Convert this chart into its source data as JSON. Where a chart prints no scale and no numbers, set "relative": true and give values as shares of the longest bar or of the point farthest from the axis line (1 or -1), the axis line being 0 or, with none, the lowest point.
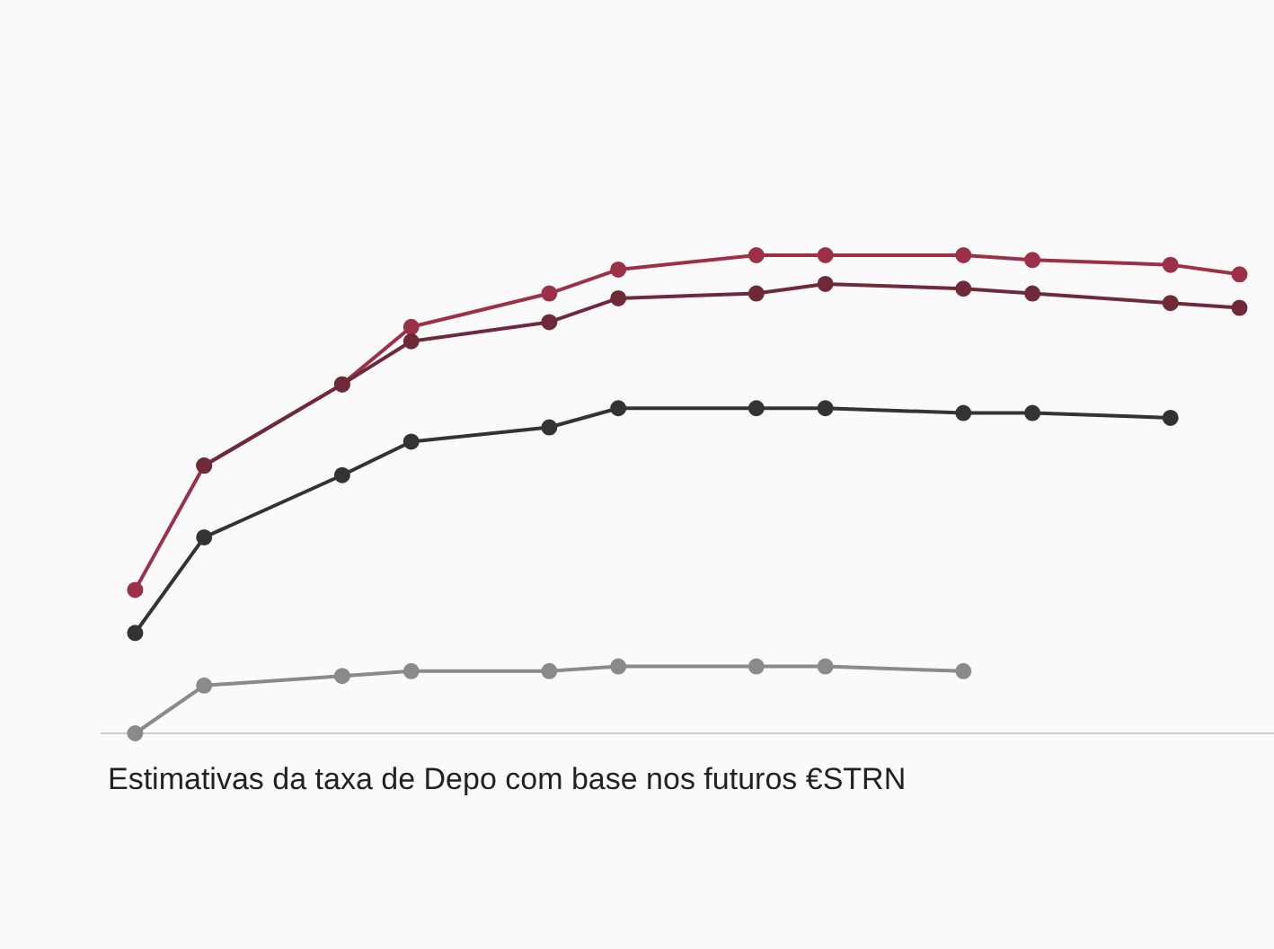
{
  "chart_data": {
    "type": "line",
    "relative": true,
    "marker": "circle",
    "line_style": "solid",
    "categories": [
      null,
      null,
      null,
      null,
      null,
      null,
      null,
      null,
      null,
      null,
      null,
      null,
      null,
      null,
      null,
      null,
      null
    ],
    "series": [
      {
        "color": "#9b3048",
        "values": [
          0.3,
          0.56,
          null,
          0.73,
          0.85,
          null,
          0.92,
          0.97,
          null,
          1.0,
          1.0,
          null,
          1.0,
          0.99,
          null,
          0.98,
          0.96
        ]
      },
      {
        "color": "#6e2a38",
        "values": [
          null,
          0.56,
          null,
          0.73,
          0.82,
          null,
          0.86,
          0.91,
          null,
          0.92,
          0.94,
          null,
          0.93,
          0.92,
          null,
          0.9,
          0.89
        ]
      },
      {
        "color": "#333333",
        "values": [
          0.21,
          0.41,
          null,
          0.54,
          0.61,
          null,
          0.64,
          0.68,
          null,
          0.68,
          0.68,
          null,
          0.67,
          0.67,
          null,
          0.66,
          null
        ]
      },
      {
        "color": "#8a8a8a",
        "values": [
          0,
          0.1,
          null,
          0.12,
          0.13,
          null,
          0.13,
          0.14,
          null,
          0.14,
          0.14,
          null,
          0.13,
          null,
          null,
          null,
          null
        ]
      }
    ],
    "annotations": [
      "Estimativas da taxa de Depo com base nos futuros €STRN"
    ]
  }
}
